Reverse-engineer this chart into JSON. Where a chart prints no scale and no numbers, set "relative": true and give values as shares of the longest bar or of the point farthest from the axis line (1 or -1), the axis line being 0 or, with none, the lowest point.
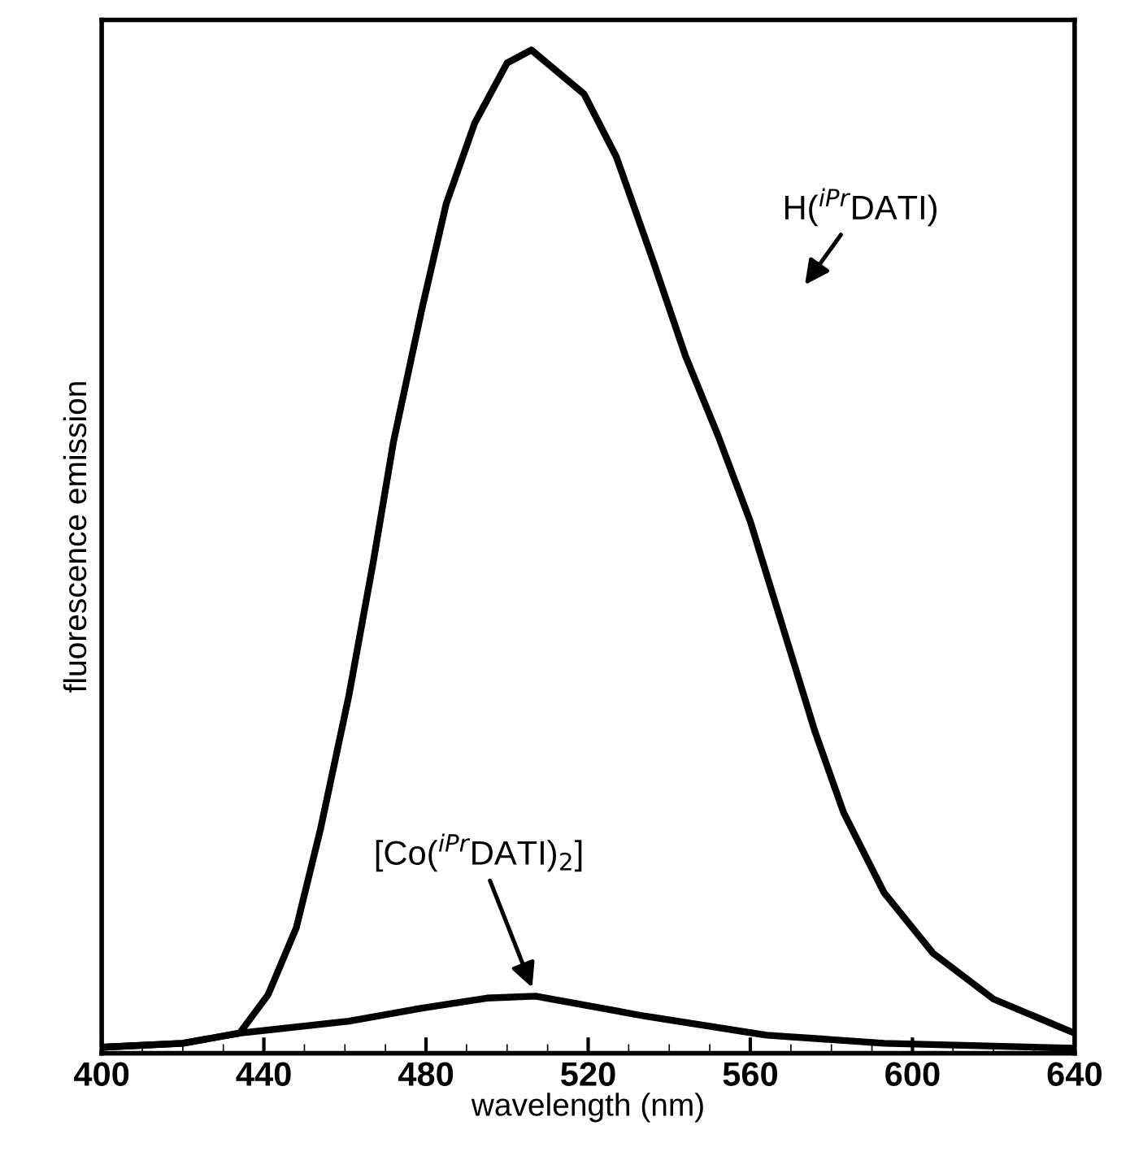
{
  "chart_data": {
    "type": "line",
    "relative": true,
    "xlabel": "wavelength (nm)",
    "ylabel": "fluorescence emission",
    "xlim": [
      400,
      640
    ],
    "xticks": [
      400,
      440,
      480,
      520,
      560,
      600,
      640
    ],
    "tick_labels": "x",
    "grid": false,
    "series": [
      {
        "color": "#000000",
        "x": [
          400,
          420,
          434,
          441,
          448,
          454,
          461,
          467,
          472,
          479,
          485,
          492,
          500,
          506,
          519,
          527,
          536,
          544,
          552,
          560,
          568,
          576,
          583,
          593,
          605,
          620,
          640
        ],
        "values": [
          0.006,
          0.01,
          0.02,
          0.058,
          0.125,
          0.224,
          0.357,
          0.49,
          0.61,
          0.742,
          0.847,
          0.927,
          0.987,
          1.0,
          0.956,
          0.893,
          0.79,
          0.695,
          0.616,
          0.53,
          0.425,
          0.32,
          0.24,
          0.16,
          0.1,
          0.054,
          0.02
        ]
      },
      {
        "color": "#000000",
        "x": [
          400,
          420,
          434,
          461,
          479,
          495,
          507,
          534,
          564,
          593,
          640
        ],
        "values": [
          0.006,
          0.01,
          0.02,
          0.032,
          0.045,
          0.055,
          0.057,
          0.037,
          0.018,
          0.01,
          0.005
        ]
      }
    ],
    "annotations": [
      "H($^{iPr}$DATI)",
      {
        "text": "[Co($^{iPr}$DATI)$_{2}$]",
        "x": 507,
        "y": 0.057
      }
    ]
  }
}
